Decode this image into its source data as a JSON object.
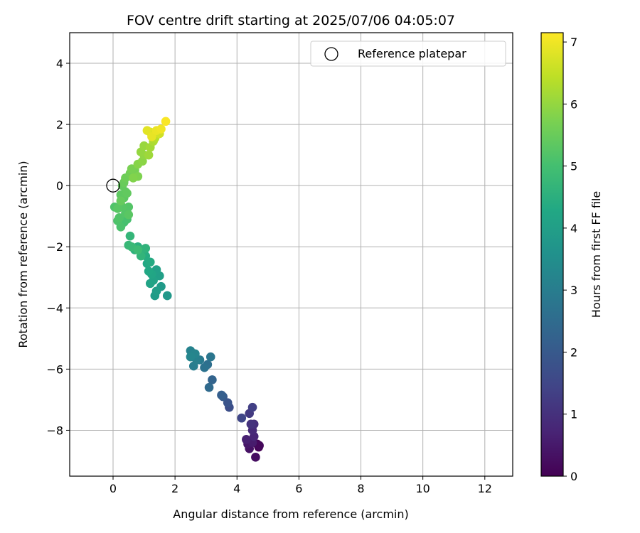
{
  "chart_data": {
    "type": "scatter",
    "title": "FOV centre drift starting at 2025/07/06 04:05:07",
    "xlabel": "Angular distance from reference (arcmin)",
    "ylabel": "Rotation from reference (arcmin)",
    "xlim": [
      -1.4,
      12.9
    ],
    "ylim": [
      -9.5,
      5.0
    ],
    "xticks": [
      0,
      2,
      4,
      6,
      8,
      10,
      12
    ],
    "yticks": [
      -8,
      -6,
      -4,
      -2,
      0,
      2,
      4
    ],
    "grid": true,
    "legend": {
      "position": "top-right",
      "entries": [
        "Reference platepar"
      ]
    },
    "reference_point": {
      "x": 0,
      "y": 0
    },
    "colorbar": {
      "label": "Hours from first FF file",
      "range": [
        0,
        7.15
      ],
      "ticks": [
        0,
        1,
        2,
        3,
        4,
        5,
        6,
        7
      ],
      "colormap": "viridis"
    },
    "points": [
      [
        4.7,
        -8.55,
        0.0
      ],
      [
        4.65,
        -8.45,
        0.08
      ],
      [
        4.72,
        -8.5,
        0.15
      ],
      [
        4.6,
        -8.88,
        0.25
      ],
      [
        4.4,
        -8.6,
        0.35
      ],
      [
        4.35,
        -8.45,
        0.45
      ],
      [
        4.5,
        -8.4,
        0.55
      ],
      [
        4.3,
        -8.3,
        0.65
      ],
      [
        4.55,
        -8.2,
        0.75
      ],
      [
        4.5,
        -8.0,
        0.85
      ],
      [
        4.55,
        -7.8,
        0.95
      ],
      [
        4.45,
        -7.8,
        1.05
      ],
      [
        4.4,
        -7.45,
        1.2
      ],
      [
        4.5,
        -7.25,
        1.35
      ],
      [
        4.15,
        -7.6,
        1.5
      ],
      [
        3.75,
        -7.25,
        1.7
      ],
      [
        3.7,
        -7.1,
        1.85
      ],
      [
        3.55,
        -6.9,
        2.0
      ],
      [
        3.5,
        -6.85,
        2.15
      ],
      [
        3.2,
        -6.35,
        2.3
      ],
      [
        3.1,
        -6.6,
        2.45
      ],
      [
        3.05,
        -5.85,
        2.6
      ],
      [
        2.95,
        -5.95,
        2.7
      ],
      [
        3.15,
        -5.6,
        2.8
      ],
      [
        2.8,
        -5.7,
        2.9
      ],
      [
        2.6,
        -5.9,
        3.0
      ],
      [
        2.7,
        -5.7,
        3.05
      ],
      [
        2.6,
        -5.6,
        3.1
      ],
      [
        2.5,
        -5.4,
        3.15
      ],
      [
        2.65,
        -5.5,
        3.2
      ],
      [
        2.5,
        -5.6,
        3.25
      ],
      [
        1.75,
        -3.6,
        3.8
      ],
      [
        1.55,
        -3.3,
        3.85
      ],
      [
        1.35,
        -3.6,
        3.9
      ],
      [
        1.4,
        -3.45,
        3.95
      ],
      [
        1.5,
        -2.95,
        4.0
      ],
      [
        1.4,
        -2.75,
        4.05
      ],
      [
        1.3,
        -3.1,
        4.1
      ],
      [
        1.2,
        -3.2,
        4.15
      ],
      [
        1.25,
        -2.9,
        4.2
      ],
      [
        1.15,
        -2.8,
        4.25
      ],
      [
        1.1,
        -2.55,
        4.3
      ],
      [
        1.2,
        -2.5,
        4.35
      ],
      [
        1.05,
        -2.3,
        4.4
      ],
      [
        0.95,
        -2.2,
        4.45
      ],
      [
        0.8,
        -2.0,
        4.5
      ],
      [
        0.7,
        -2.1,
        4.55
      ],
      [
        1.05,
        -2.05,
        4.6
      ],
      [
        0.9,
        -2.3,
        4.65
      ],
      [
        0.55,
        -1.65,
        4.7
      ],
      [
        0.5,
        -1.95,
        4.75
      ],
      [
        0.6,
        -2.0,
        4.8
      ],
      [
        0.8,
        -2.1,
        4.85
      ],
      [
        0.35,
        -1.2,
        5.0
      ],
      [
        0.45,
        -1.1,
        5.05
      ],
      [
        0.25,
        -1.35,
        5.1
      ],
      [
        0.15,
        -1.15,
        5.12
      ],
      [
        0.05,
        -0.7,
        5.15
      ],
      [
        0.2,
        -1.05,
        5.18
      ],
      [
        0.4,
        -0.9,
        5.2
      ],
      [
        0.5,
        -0.7,
        5.22
      ],
      [
        0.3,
        -0.7,
        5.25
      ],
      [
        0.15,
        -0.75,
        5.28
      ],
      [
        0.5,
        -0.95,
        5.3
      ],
      [
        0.35,
        -0.4,
        5.32
      ],
      [
        0.25,
        -0.3,
        5.35
      ],
      [
        0.4,
        -0.2,
        5.38
      ],
      [
        0.45,
        -0.25,
        5.4
      ],
      [
        0.3,
        0.0,
        5.42
      ],
      [
        0.25,
        -0.5,
        5.45
      ],
      [
        0.35,
        0.1,
        5.5
      ],
      [
        0.4,
        0.25,
        5.55
      ],
      [
        0.55,
        0.4,
        5.6
      ],
      [
        0.7,
        0.5,
        5.65
      ],
      [
        0.6,
        0.55,
        5.7
      ],
      [
        0.8,
        0.3,
        5.75
      ],
      [
        0.65,
        0.25,
        5.8
      ],
      [
        0.8,
        0.7,
        5.85
      ],
      [
        0.95,
        0.8,
        5.9
      ],
      [
        1.0,
        1.0,
        5.95
      ],
      [
        0.9,
        1.1,
        6.0
      ],
      [
        1.0,
        1.3,
        6.05
      ],
      [
        1.15,
        1.0,
        6.1
      ],
      [
        1.2,
        1.25,
        6.15
      ],
      [
        1.3,
        1.45,
        6.25
      ],
      [
        1.35,
        1.55,
        6.35
      ],
      [
        1.4,
        1.65,
        6.45
      ],
      [
        1.45,
        1.8,
        6.55
      ],
      [
        1.5,
        1.7,
        6.65
      ],
      [
        1.2,
        1.75,
        6.75
      ],
      [
        1.1,
        1.8,
        6.85
      ],
      [
        1.25,
        1.6,
        6.9
      ],
      [
        1.4,
        1.8,
        6.95
      ],
      [
        1.55,
        1.85,
        7.0
      ],
      [
        1.7,
        2.1,
        7.1
      ]
    ]
  }
}
